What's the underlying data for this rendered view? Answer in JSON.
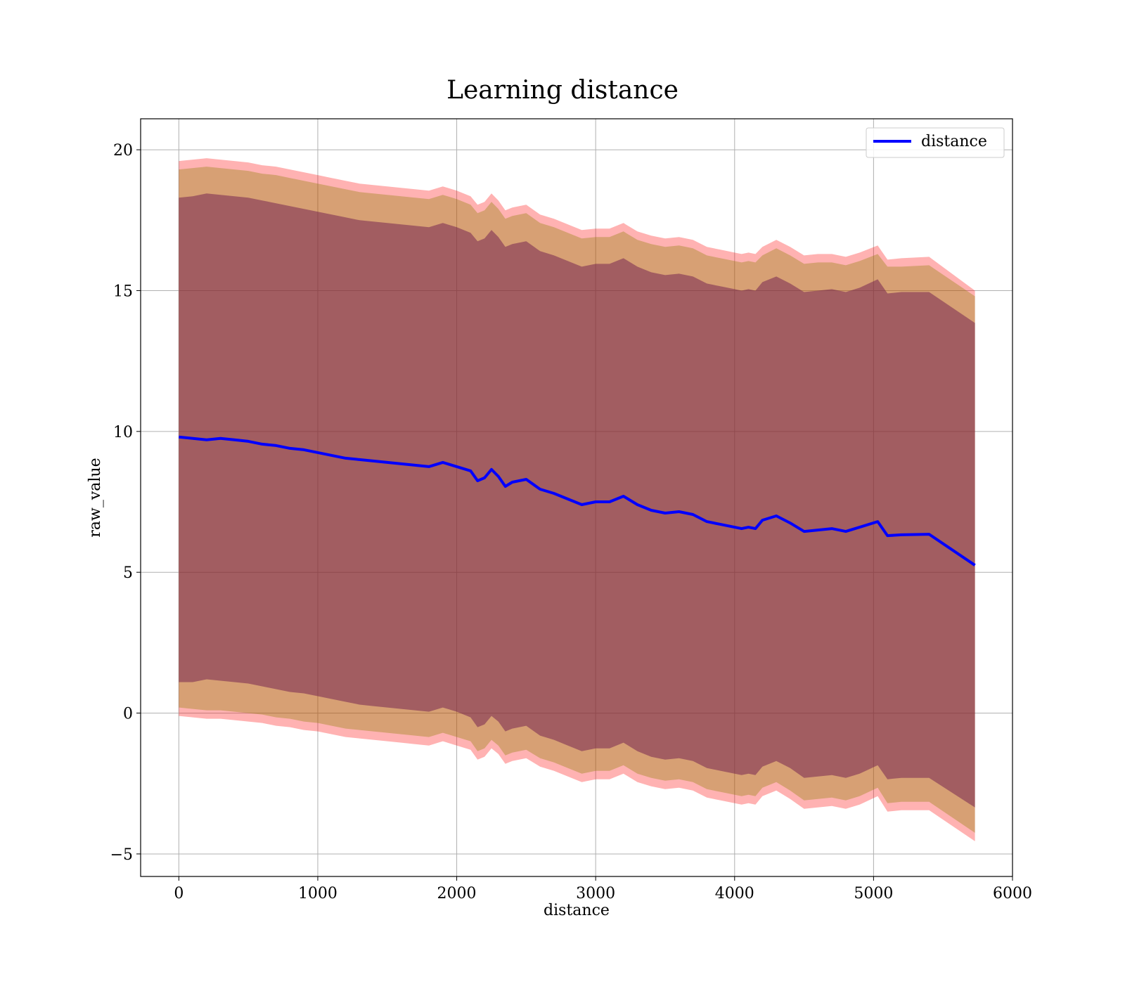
{
  "chart_data": {
    "type": "line",
    "title": "Learning distance",
    "xlabel": "distance",
    "ylabel": "raw_value",
    "xlim": [
      -275,
      6000
    ],
    "ylim": [
      -5.8,
      21.1
    ],
    "xticks": [
      0,
      1000,
      2000,
      3000,
      4000,
      5000,
      6000
    ],
    "yticks": [
      -5,
      0,
      5,
      10,
      15,
      20
    ],
    "xtick_labels": [
      "0",
      "1000",
      "2000",
      "3000",
      "4000",
      "5000",
      "6000"
    ],
    "ytick_labels": [
      "−5",
      "0",
      "5",
      "10",
      "15",
      "20"
    ],
    "grid": true,
    "legend_position": "top-right",
    "colors": {
      "line": "#0000ff",
      "outer_band": "#ff0000",
      "middle_band": "#8c7e00",
      "inner_band": "#6e1a4e",
      "grid": "#b0b0b0"
    },
    "x": [
      0,
      100,
      200,
      300,
      400,
      500,
      600,
      700,
      800,
      900,
      1000,
      1100,
      1200,
      1300,
      1400,
      1500,
      1600,
      1700,
      1800,
      1900,
      2000,
      2100,
      2150,
      2200,
      2250,
      2300,
      2350,
      2400,
      2500,
      2600,
      2700,
      2800,
      2900,
      3000,
      3100,
      3200,
      3300,
      3400,
      3500,
      3600,
      3700,
      3800,
      3900,
      4000,
      4050,
      4100,
      4150,
      4200,
      4300,
      4400,
      4500,
      4600,
      4700,
      4800,
      4900,
      5030,
      5100,
      5200,
      5400,
      5730
    ],
    "series": [
      {
        "name": "distance",
        "values": [
          9.8,
          9.75,
          9.7,
          9.75,
          9.7,
          9.65,
          9.55,
          9.5,
          9.4,
          9.35,
          9.25,
          9.15,
          9.05,
          9.0,
          8.95,
          8.9,
          8.85,
          8.8,
          8.75,
          8.9,
          8.75,
          8.6,
          8.25,
          8.35,
          8.65,
          8.4,
          8.05,
          8.2,
          8.3,
          7.95,
          7.8,
          7.6,
          7.4,
          7.5,
          7.5,
          7.7,
          7.4,
          7.2,
          7.1,
          7.15,
          7.05,
          6.8,
          6.7,
          6.6,
          6.55,
          6.6,
          6.55,
          6.85,
          7.0,
          6.75,
          6.45,
          6.5,
          6.55,
          6.45,
          6.6,
          6.8,
          6.3,
          6.33,
          6.35,
          5.25
        ]
      }
    ],
    "bands": [
      {
        "name": "outer",
        "upper": [
          19.6,
          19.65,
          19.7,
          19.65,
          19.6,
          19.55,
          19.45,
          19.4,
          19.3,
          19.2,
          19.1,
          19.0,
          18.9,
          18.8,
          18.75,
          18.7,
          18.65,
          18.6,
          18.55,
          18.7,
          18.55,
          18.35,
          18.05,
          18.15,
          18.45,
          18.2,
          17.85,
          17.95,
          18.05,
          17.7,
          17.55,
          17.35,
          17.15,
          17.2,
          17.2,
          17.4,
          17.1,
          16.95,
          16.85,
          16.9,
          16.8,
          16.55,
          16.45,
          16.35,
          16.3,
          16.35,
          16.3,
          16.55,
          16.8,
          16.55,
          16.25,
          16.3,
          16.3,
          16.2,
          16.35,
          16.6,
          16.1,
          16.15,
          16.2,
          15.0
        ],
        "lower": [
          -0.1,
          -0.15,
          -0.2,
          -0.2,
          -0.25,
          -0.3,
          -0.35,
          -0.45,
          -0.5,
          -0.6,
          -0.65,
          -0.75,
          -0.85,
          -0.9,
          -0.95,
          -1.0,
          -1.05,
          -1.1,
          -1.15,
          -1.0,
          -1.15,
          -1.3,
          -1.65,
          -1.55,
          -1.25,
          -1.45,
          -1.8,
          -1.7,
          -1.6,
          -1.9,
          -2.05,
          -2.25,
          -2.45,
          -2.35,
          -2.35,
          -2.15,
          -2.45,
          -2.6,
          -2.7,
          -2.65,
          -2.75,
          -3.0,
          -3.1,
          -3.2,
          -3.25,
          -3.2,
          -3.25,
          -2.95,
          -2.75,
          -3.05,
          -3.4,
          -3.35,
          -3.3,
          -3.4,
          -3.25,
          -2.95,
          -3.5,
          -3.45,
          -3.45,
          -4.55
        ]
      },
      {
        "name": "middle",
        "upper": [
          19.3,
          19.35,
          19.4,
          19.35,
          19.3,
          19.25,
          19.15,
          19.1,
          19.0,
          18.9,
          18.8,
          18.7,
          18.6,
          18.5,
          18.45,
          18.4,
          18.35,
          18.3,
          18.25,
          18.4,
          18.25,
          18.05,
          17.75,
          17.85,
          18.15,
          17.9,
          17.55,
          17.65,
          17.75,
          17.4,
          17.25,
          17.05,
          16.85,
          16.9,
          16.9,
          17.1,
          16.8,
          16.65,
          16.55,
          16.6,
          16.5,
          16.25,
          16.15,
          16.05,
          16.0,
          16.05,
          16.0,
          16.25,
          16.5,
          16.25,
          15.95,
          16.0,
          16.0,
          15.9,
          16.05,
          16.3,
          15.85,
          15.85,
          15.9,
          14.8
        ],
        "lower": [
          0.2,
          0.15,
          0.1,
          0.1,
          0.05,
          0.0,
          -0.05,
          -0.15,
          -0.2,
          -0.3,
          -0.35,
          -0.45,
          -0.55,
          -0.6,
          -0.65,
          -0.7,
          -0.75,
          -0.8,
          -0.85,
          -0.7,
          -0.85,
          -1.0,
          -1.35,
          -1.25,
          -0.95,
          -1.15,
          -1.5,
          -1.4,
          -1.3,
          -1.6,
          -1.75,
          -1.95,
          -2.15,
          -2.05,
          -2.05,
          -1.85,
          -2.15,
          -2.3,
          -2.4,
          -2.35,
          -2.45,
          -2.7,
          -2.8,
          -2.9,
          -2.95,
          -2.9,
          -2.95,
          -2.65,
          -2.45,
          -2.75,
          -3.1,
          -3.05,
          -3.0,
          -3.1,
          -2.95,
          -2.65,
          -3.2,
          -3.15,
          -3.15,
          -4.25
        ]
      },
      {
        "name": "inner",
        "upper": [
          18.3,
          18.35,
          18.45,
          18.4,
          18.35,
          18.3,
          18.2,
          18.1,
          18.0,
          17.9,
          17.8,
          17.7,
          17.6,
          17.5,
          17.45,
          17.4,
          17.35,
          17.3,
          17.25,
          17.4,
          17.25,
          17.05,
          16.75,
          16.85,
          17.15,
          16.9,
          16.55,
          16.65,
          16.75,
          16.4,
          16.25,
          16.05,
          15.85,
          15.95,
          15.95,
          16.15,
          15.85,
          15.65,
          15.55,
          15.6,
          15.5,
          15.25,
          15.15,
          15.05,
          15.0,
          15.05,
          15.0,
          15.3,
          15.5,
          15.25,
          14.95,
          15.0,
          15.05,
          14.95,
          15.1,
          15.4,
          14.9,
          14.95,
          14.95,
          13.85
        ],
        "lower": [
          1.1,
          1.1,
          1.2,
          1.15,
          1.1,
          1.05,
          0.95,
          0.85,
          0.75,
          0.7,
          0.6,
          0.5,
          0.4,
          0.3,
          0.25,
          0.2,
          0.15,
          0.1,
          0.05,
          0.2,
          0.05,
          -0.15,
          -0.5,
          -0.4,
          -0.1,
          -0.3,
          -0.65,
          -0.55,
          -0.45,
          -0.8,
          -0.95,
          -1.15,
          -1.35,
          -1.25,
          -1.25,
          -1.05,
          -1.35,
          -1.55,
          -1.65,
          -1.6,
          -1.7,
          -1.95,
          -2.05,
          -2.15,
          -2.2,
          -2.15,
          -2.2,
          -1.9,
          -1.7,
          -1.95,
          -2.3,
          -2.25,
          -2.2,
          -2.3,
          -2.15,
          -1.85,
          -2.35,
          -2.3,
          -2.3,
          -3.35
        ]
      }
    ]
  }
}
